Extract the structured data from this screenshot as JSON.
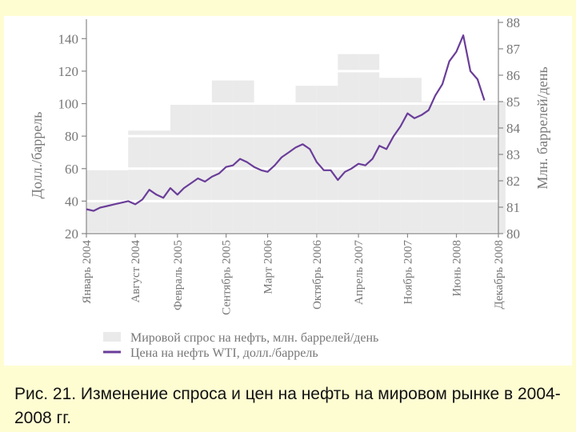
{
  "caption": "Рис. 21. Изменение спроса и цен на нефть на мировом рынке в 2004-2008 гг.",
  "colors": {
    "bars": "#eaeaea",
    "price_line": "#6a3d99",
    "axis": "#888888",
    "text": "#777777",
    "grid": "#ffffff",
    "page_background": "#fefdd2"
  },
  "chart_data": {
    "type": "bar+line",
    "title": "",
    "left_axis": {
      "label": "Долл./баррель",
      "ticks": [
        20,
        40,
        60,
        80,
        100,
        120,
        140
      ],
      "range": [
        20,
        150
      ]
    },
    "right_axis": {
      "label": "Млн. баррелей/день",
      "ticks": [
        80,
        81,
        82,
        83,
        84,
        85,
        86,
        87,
        88
      ],
      "range": [
        80,
        88
      ]
    },
    "x_labels": [
      "Январь 2004",
      "Август 2004",
      "Февраль 2005",
      "Сентябрь 2005",
      "Март 2006",
      "Октябрь 2006",
      "Апрель 2007",
      "Ноябрь 2007",
      "Июнь 2008",
      "Декабрь 2008"
    ],
    "legend": [
      {
        "label": "Мировой спрос на нефть, млн. баррелей/день",
        "kind": "bar"
      },
      {
        "label": "Цена на нефть WTI, долл./баррель",
        "kind": "line"
      }
    ],
    "demand_series": {
      "name": "Мировой спрос на нефть, млн. баррелей/день",
      "periods": [
        "2004 Q1",
        "2004 Q2",
        "2004 Q3",
        "2004 Q4",
        "2005 Q1",
        "2005 Q2",
        "2005 Q3",
        "2005 Q4",
        "2006 Q1",
        "2006 Q2",
        "2006 Q3",
        "2006 Q4",
        "2007 Q1",
        "2007 Q2",
        "2007 Q3",
        "2007 Q4",
        "2008 Q1",
        "2008 Q2",
        "2008 Q3",
        "2008 Q4"
      ],
      "values": [
        82.4,
        82.4,
        83.9,
        83.9,
        84.9,
        84.9,
        85.8,
        85.8,
        84.9,
        84.9,
        85.6,
        85.6,
        86.8,
        86.8,
        85.9,
        85.9,
        85.0,
        85.0,
        85.0,
        85.0
      ]
    },
    "price_series": {
      "name": "Цена на нефть WTI, долл./баррель",
      "points": [
        [
          "2004-01",
          35
        ],
        [
          "2004-02",
          34
        ],
        [
          "2004-03",
          36
        ],
        [
          "2004-04",
          37
        ],
        [
          "2004-05",
          38
        ],
        [
          "2004-06",
          39
        ],
        [
          "2004-07",
          40
        ],
        [
          "2004-08",
          38
        ],
        [
          "2004-09",
          41
        ],
        [
          "2004-10",
          47
        ],
        [
          "2004-11",
          44
        ],
        [
          "2004-12",
          42
        ],
        [
          "2005-01",
          48
        ],
        [
          "2005-02",
          44
        ],
        [
          "2005-03",
          48
        ],
        [
          "2005-04",
          51
        ],
        [
          "2005-05",
          54
        ],
        [
          "2005-06",
          52
        ],
        [
          "2005-07",
          55
        ],
        [
          "2005-08",
          57
        ],
        [
          "2005-09",
          61
        ],
        [
          "2005-10",
          62
        ],
        [
          "2005-11",
          66
        ],
        [
          "2005-12",
          64
        ],
        [
          "2006-01",
          61
        ],
        [
          "2006-02",
          59
        ],
        [
          "2006-03",
          58
        ],
        [
          "2006-04",
          62
        ],
        [
          "2006-05",
          67
        ],
        [
          "2006-06",
          70
        ],
        [
          "2006-07",
          73
        ],
        [
          "2006-08",
          75
        ],
        [
          "2006-09",
          72
        ],
        [
          "2006-10",
          64
        ],
        [
          "2006-11",
          59
        ],
        [
          "2006-12",
          59
        ],
        [
          "2007-01",
          53
        ],
        [
          "2007-02",
          58
        ],
        [
          "2007-03",
          60
        ],
        [
          "2007-04",
          63
        ],
        [
          "2007-05",
          62
        ],
        [
          "2007-06",
          66
        ],
        [
          "2007-07",
          74
        ],
        [
          "2007-08",
          72
        ],
        [
          "2007-09",
          80
        ],
        [
          "2007-10",
          86
        ],
        [
          "2007-11",
          94
        ],
        [
          "2007-12",
          91
        ],
        [
          "2008-01",
          93
        ],
        [
          "2008-02",
          96
        ],
        [
          "2008-03",
          105
        ],
        [
          "2008-04",
          112
        ],
        [
          "2008-05",
          126
        ],
        [
          "2008-06",
          132
        ],
        [
          "2008-07",
          142
        ],
        [
          "2008-08",
          120
        ],
        [
          "2008-09",
          115
        ],
        [
          "2008-10",
          102
        ]
      ]
    }
  }
}
